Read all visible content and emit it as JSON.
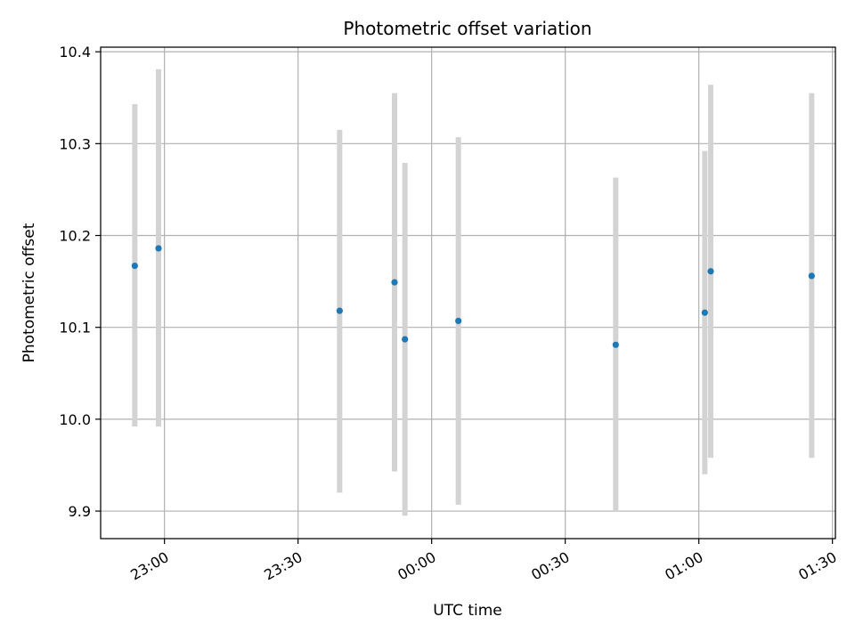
{
  "chart_data": {
    "type": "scatter",
    "title": "Photometric offset variation",
    "xlabel": "UTC time",
    "ylabel": "Photometric offset",
    "xlim": [
      "22:45:40",
      "01:30:40"
    ],
    "ylim": [
      9.87,
      10.405
    ],
    "xticks": [
      {
        "value": "23:00",
        "label": "23:00"
      },
      {
        "value": "23:30",
        "label": "23:30"
      },
      {
        "value": "00:00",
        "label": "00:00"
      },
      {
        "value": "00:30",
        "label": "00:30"
      },
      {
        "value": "01:00",
        "label": "01:00"
      },
      {
        "value": "01:30",
        "label": "01:30"
      }
    ],
    "yticks": [
      9.9,
      10.0,
      10.1,
      10.2,
      10.3,
      10.4
    ],
    "grid": true,
    "point_color": "#1f77b4",
    "errorbar_color": "#d3d3d3",
    "points": [
      {
        "x": "22:53:20",
        "y": 10.167,
        "ylow": 9.992,
        "yhigh": 10.343
      },
      {
        "x": "22:58:40",
        "y": 10.186,
        "ylow": 9.992,
        "yhigh": 10.381
      },
      {
        "x": "23:39:20",
        "y": 10.118,
        "ylow": 9.92,
        "yhigh": 10.315
      },
      {
        "x": "23:51:40",
        "y": 10.149,
        "ylow": 9.943,
        "yhigh": 10.355
      },
      {
        "x": "23:54:00",
        "y": 10.087,
        "ylow": 9.895,
        "yhigh": 10.279
      },
      {
        "x": "00:06:00",
        "y": 10.107,
        "ylow": 9.907,
        "yhigh": 10.307
      },
      {
        "x": "00:41:20",
        "y": 10.081,
        "ylow": 9.9,
        "yhigh": 10.263
      },
      {
        "x": "01:01:20",
        "y": 10.116,
        "ylow": 9.94,
        "yhigh": 10.292
      },
      {
        "x": "01:02:40",
        "y": 10.161,
        "ylow": 9.958,
        "yhigh": 10.364
      },
      {
        "x": "01:25:20",
        "y": 10.156,
        "ylow": 9.958,
        "yhigh": 10.355
      }
    ]
  }
}
